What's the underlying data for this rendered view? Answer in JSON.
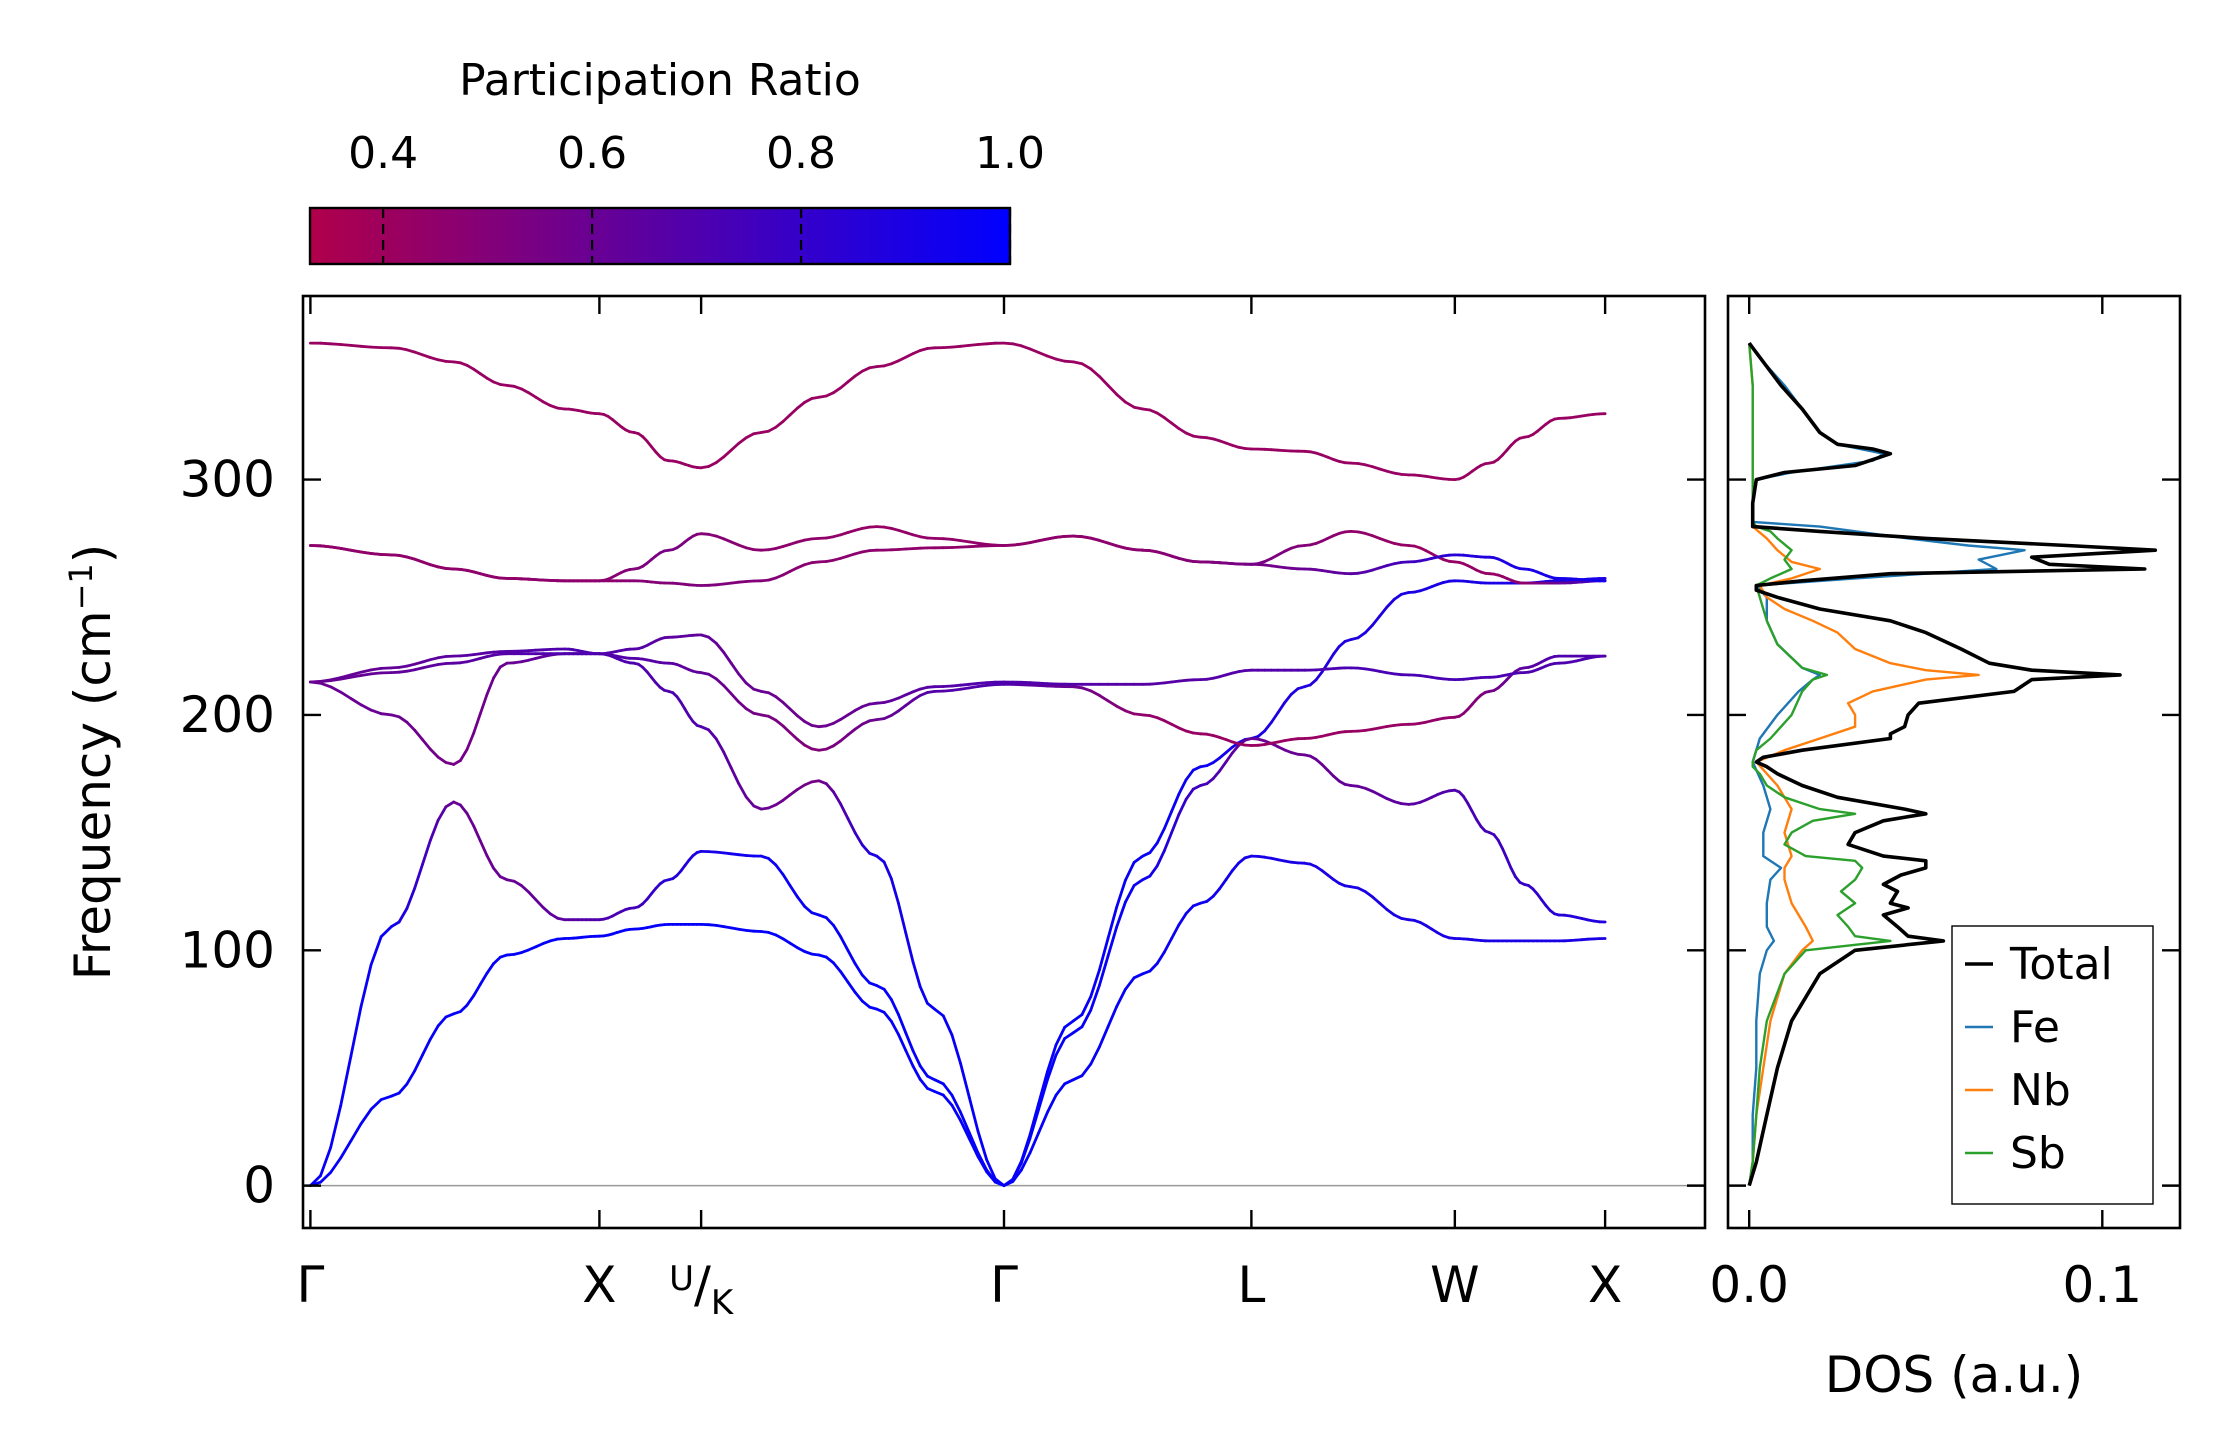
{
  "chart_data": [
    {
      "id": "phonon-band-structure",
      "type": "line",
      "ylabel_main": "Frequency (cm",
      "ylabel_sup": "−1",
      "ylabel_close": ")",
      "ylim": [
        -18,
        378
      ],
      "xlim": [
        -0.032,
        6.032
      ],
      "yticks": [
        0,
        100,
        200,
        300
      ],
      "ytick_labels": [
        "0",
        "100",
        "200",
        "300"
      ],
      "kpoints": [
        {
          "label": "Γ",
          "x": 0
        },
        {
          "label": "X",
          "x": 1.25
        },
        {
          "label": "U/K",
          "label_main": "U",
          "label_sub": "K",
          "x": 1.69
        },
        {
          "label": "Γ",
          "x": 3.0
        },
        {
          "label": "L",
          "x": 4.07
        },
        {
          "label": "W",
          "x": 4.95
        },
        {
          "label": "X",
          "x": 5.6
        }
      ],
      "x": [
        0,
        0.35,
        0.62,
        0.85,
        1.1,
        1.25,
        1.4,
        1.55,
        1.69,
        1.95,
        2.2,
        2.45,
        2.7,
        3.0,
        3.3,
        3.6,
        3.85,
        4.07,
        4.3,
        4.5,
        4.75,
        4.95,
        5.1,
        5.25,
        5.4,
        5.6
      ],
      "bands": [
        {
          "y": [
            0,
            38,
            73,
            98,
            105,
            106,
            109,
            111,
            111,
            108,
            98,
            75,
            40,
            0,
            45,
            90,
            120,
            140,
            137,
            127,
            113,
            105,
            104,
            104,
            104,
            105
          ],
          "pr": [
            0.98,
            0.98,
            0.98,
            0.98,
            0.98,
            0.98,
            0.98,
            0.98,
            0.98,
            0.98,
            0.98,
            0.98,
            0.98,
            0.98,
            0.98,
            0.97,
            0.95,
            0.92,
            0.9,
            0.9,
            0.9,
            0.9,
            0.9,
            0.9,
            0.9,
            0.9
          ]
        },
        {
          "y": [
            0,
            110,
            163,
            130,
            113,
            113,
            118,
            130,
            142,
            140,
            115,
            85,
            45,
            0,
            70,
            140,
            178,
            190,
            212,
            232,
            252,
            257,
            256,
            256,
            257,
            258
          ],
          "pr": [
            0.98,
            0.96,
            0.6,
            0.6,
            0.65,
            0.7,
            0.75,
            0.85,
            0.9,
            0.95,
            0.97,
            0.98,
            0.98,
            0.98,
            0.98,
            0.97,
            0.95,
            0.9,
            0.88,
            0.88,
            0.9,
            0.9,
            0.9,
            0.9,
            0.9,
            0.9
          ]
        },
        {
          "y": [
            214,
            200,
            179,
            222,
            226,
            226,
            222,
            210,
            195,
            160,
            172,
            140,
            75,
            0,
            65,
            130,
            170,
            190,
            183,
            170,
            162,
            168,
            150,
            128,
            115,
            112
          ],
          "pr": [
            0.6,
            0.6,
            0.55,
            0.6,
            0.65,
            0.7,
            0.7,
            0.7,
            0.7,
            0.6,
            0.55,
            0.9,
            0.97,
            0.98,
            0.98,
            0.96,
            0.75,
            0.6,
            0.6,
            0.62,
            0.65,
            0.7,
            0.75,
            0.8,
            0.85,
            0.88
          ]
        },
        {
          "y": [
            214,
            220,
            225,
            227,
            228,
            226,
            224,
            222,
            218,
            200,
            185,
            198,
            210,
            213,
            212,
            200,
            192,
            187,
            190,
            193,
            196,
            199,
            210,
            220,
            225,
            225
          ],
          "pr": [
            0.6,
            0.62,
            0.65,
            0.68,
            0.7,
            0.7,
            0.68,
            0.66,
            0.63,
            0.55,
            0.5,
            0.6,
            0.68,
            0.7,
            0.6,
            0.45,
            0.42,
            0.42,
            0.42,
            0.42,
            0.42,
            0.45,
            0.55,
            0.65,
            0.7,
            0.7
          ]
        },
        {
          "y": [
            214,
            218,
            222,
            226,
            226,
            226,
            228,
            233,
            234,
            210,
            195,
            205,
            212,
            214,
            213,
            213,
            215,
            219,
            219,
            220,
            217,
            215,
            216,
            218,
            222,
            225
          ],
          "pr": [
            0.6,
            0.62,
            0.65,
            0.68,
            0.7,
            0.7,
            0.68,
            0.65,
            0.63,
            0.6,
            0.58,
            0.62,
            0.68,
            0.7,
            0.68,
            0.67,
            0.67,
            0.68,
            0.7,
            0.72,
            0.72,
            0.72,
            0.72,
            0.7,
            0.7,
            0.7
          ]
        },
        {
          "y": [
            272,
            268,
            262,
            258,
            257,
            257,
            257,
            256,
            255,
            257,
            265,
            270,
            271,
            272,
            276,
            270,
            265,
            264,
            272,
            278,
            272,
            265,
            260,
            256,
            256,
            257
          ],
          "pr": [
            0.45,
            0.45,
            0.45,
            0.45,
            0.46,
            0.46,
            0.48,
            0.5,
            0.52,
            0.5,
            0.47,
            0.46,
            0.45,
            0.45,
            0.45,
            0.47,
            0.5,
            0.55,
            0.5,
            0.45,
            0.43,
            0.43,
            0.43,
            0.45,
            0.6,
            0.8
          ]
        },
        {
          "y": [
            272,
            268,
            262,
            258,
            257,
            257,
            262,
            270,
            277,
            270,
            275,
            280,
            275,
            272,
            276,
            270,
            265,
            264,
            262,
            260,
            265,
            268,
            267,
            262,
            258,
            257
          ],
          "pr": [
            0.45,
            0.45,
            0.45,
            0.45,
            0.46,
            0.46,
            0.5,
            0.55,
            0.5,
            0.47,
            0.45,
            0.43,
            0.44,
            0.45,
            0.45,
            0.47,
            0.5,
            0.55,
            0.6,
            0.65,
            0.75,
            0.85,
            0.88,
            0.9,
            0.92,
            0.92
          ]
        },
        {
          "y": [
            358,
            356,
            350,
            340,
            330,
            328,
            320,
            308,
            305,
            320,
            335,
            348,
            356,
            358,
            350,
            330,
            318,
            313,
            312,
            307,
            302,
            300,
            307,
            318,
            326,
            328
          ],
          "pr": [
            0.42,
            0.42,
            0.42,
            0.42,
            0.42,
            0.42,
            0.42,
            0.42,
            0.42,
            0.42,
            0.42,
            0.42,
            0.42,
            0.42,
            0.42,
            0.42,
            0.42,
            0.42,
            0.42,
            0.42,
            0.42,
            0.42,
            0.42,
            0.42,
            0.42,
            0.42
          ]
        }
      ]
    },
    {
      "id": "phonon-dos",
      "type": "line",
      "xlabel": "DOS (a.u.)",
      "xlim": [
        -0.006,
        0.122
      ],
      "ylim": [
        -18,
        378
      ],
      "xticks": [
        0.0,
        0.1
      ],
      "xtick_labels": [
        "0.0",
        "0.1"
      ],
      "legend_position": "bottom-right",
      "series": [
        {
          "name": "Total",
          "color": "#000000",
          "freq": [
            0,
            10,
            30,
            50,
            70,
            90,
            100,
            104,
            106,
            110,
            115,
            118,
            120,
            125,
            128,
            132,
            135,
            138,
            140,
            145,
            150,
            155,
            158,
            160,
            165,
            170,
            175,
            178,
            180,
            182,
            185,
            190,
            192,
            195,
            200,
            205,
            210,
            215,
            217,
            219,
            222,
            228,
            235,
            240,
            245,
            250,
            253,
            255,
            257,
            260,
            262,
            264,
            267,
            270,
            272,
            275,
            278,
            280,
            282,
            290,
            300,
            303,
            306,
            309,
            311,
            313,
            315,
            320,
            330,
            340,
            350,
            356,
            358
          ],
          "dos": [
            0,
            0.002,
            0.005,
            0.008,
            0.012,
            0.02,
            0.03,
            0.055,
            0.045,
            0.042,
            0.038,
            0.045,
            0.04,
            0.042,
            0.038,
            0.043,
            0.05,
            0.05,
            0.038,
            0.028,
            0.03,
            0.038,
            0.05,
            0.044,
            0.025,
            0.015,
            0.008,
            0.005,
            0.002,
            0.004,
            0.015,
            0.04,
            0.04,
            0.044,
            0.045,
            0.048,
            0.075,
            0.08,
            0.105,
            0.08,
            0.068,
            0.06,
            0.05,
            0.04,
            0.02,
            0.008,
            0.002,
            0.002,
            0.015,
            0.04,
            0.112,
            0.085,
            0.08,
            0.115,
            0.09,
            0.05,
            0.02,
            0.001,
            0.001,
            0.001,
            0.002,
            0.01,
            0.03,
            0.036,
            0.04,
            0.035,
            0.025,
            0.02,
            0.015,
            0.009,
            0.004,
            0.001,
            0
          ]
        },
        {
          "name": "Fe",
          "color": "#1f77b4",
          "freq": [
            0,
            10,
            30,
            50,
            70,
            90,
            100,
            104,
            110,
            120,
            130,
            135,
            140,
            150,
            160,
            170,
            180,
            190,
            200,
            210,
            215,
            217,
            220,
            230,
            240,
            250,
            255,
            258,
            262,
            266,
            270,
            272,
            275,
            280,
            282,
            290,
            300,
            303,
            308,
            311,
            315,
            320,
            330,
            340,
            350,
            356,
            358
          ],
          "dos": [
            0,
            0.001,
            0.001,
            0.002,
            0.002,
            0.003,
            0.005,
            0.007,
            0.005,
            0.005,
            0.006,
            0.009,
            0.004,
            0.004,
            0.006,
            0.004,
            0.001,
            0.003,
            0.008,
            0.014,
            0.018,
            0.02,
            0.015,
            0.008,
            0.005,
            0.005,
            0.002,
            0.03,
            0.07,
            0.065,
            0.078,
            0.062,
            0.045,
            0.02,
            0.001,
            0.001,
            0.002,
            0.012,
            0.035,
            0.038,
            0.025,
            0.02,
            0.015,
            0.01,
            0.004,
            0.001,
            0
          ]
        },
        {
          "name": "Nb",
          "color": "#ff7f0e",
          "freq": [
            0,
            10,
            30,
            50,
            70,
            90,
            100,
            104,
            110,
            120,
            130,
            135,
            140,
            150,
            160,
            170,
            180,
            185,
            190,
            195,
            200,
            205,
            210,
            215,
            217,
            219,
            222,
            228,
            235,
            240,
            245,
            250,
            255,
            258,
            262,
            265,
            270,
            275,
            280,
            282,
            300,
            320,
            340,
            358
          ],
          "dos": [
            0,
            0.001,
            0.002,
            0.004,
            0.006,
            0.01,
            0.015,
            0.018,
            0.016,
            0.012,
            0.01,
            0.01,
            0.012,
            0.01,
            0.012,
            0.008,
            0.002,
            0.01,
            0.02,
            0.03,
            0.03,
            0.028,
            0.035,
            0.05,
            0.065,
            0.05,
            0.04,
            0.03,
            0.025,
            0.018,
            0.01,
            0.005,
            0.003,
            0.012,
            0.02,
            0.012,
            0.008,
            0.005,
            0.001,
            0.001,
            0.001,
            0.001,
            0.001,
            0
          ]
        },
        {
          "name": "Sb",
          "color": "#2ca02c",
          "freq": [
            0,
            10,
            30,
            50,
            70,
            90,
            100,
            104,
            106,
            110,
            115,
            120,
            125,
            130,
            135,
            138,
            140,
            145,
            150,
            155,
            158,
            160,
            165,
            170,
            175,
            178,
            180,
            185,
            190,
            200,
            210,
            215,
            217,
            220,
            230,
            240,
            250,
            255,
            258,
            262,
            266,
            270,
            275,
            278,
            280,
            282,
            300,
            320,
            340,
            358
          ],
          "dos": [
            0,
            0.001,
            0.002,
            0.003,
            0.005,
            0.01,
            0.016,
            0.04,
            0.03,
            0.028,
            0.025,
            0.03,
            0.026,
            0.03,
            0.032,
            0.03,
            0.016,
            0.01,
            0.012,
            0.018,
            0.03,
            0.02,
            0.01,
            0.005,
            0.003,
            0.001,
            0.001,
            0.002,
            0.006,
            0.012,
            0.015,
            0.018,
            0.022,
            0.015,
            0.008,
            0.005,
            0.003,
            0.002,
            0.006,
            0.012,
            0.01,
            0.012,
            0.008,
            0.006,
            0.002,
            0.001,
            0.001,
            0.001,
            0.001,
            0
          ]
        }
      ]
    },
    {
      "id": "colorbar",
      "type": "colorbar",
      "title": "Participation Ratio",
      "range": [
        0.33,
        1.0
      ],
      "ticks": [
        0.4,
        0.6,
        0.8,
        1.0
      ],
      "tick_labels": [
        "0.4",
        "0.6",
        "0.8",
        "1.0"
      ],
      "color_low": "#b0004a",
      "color_high": "#0000ff"
    }
  ]
}
